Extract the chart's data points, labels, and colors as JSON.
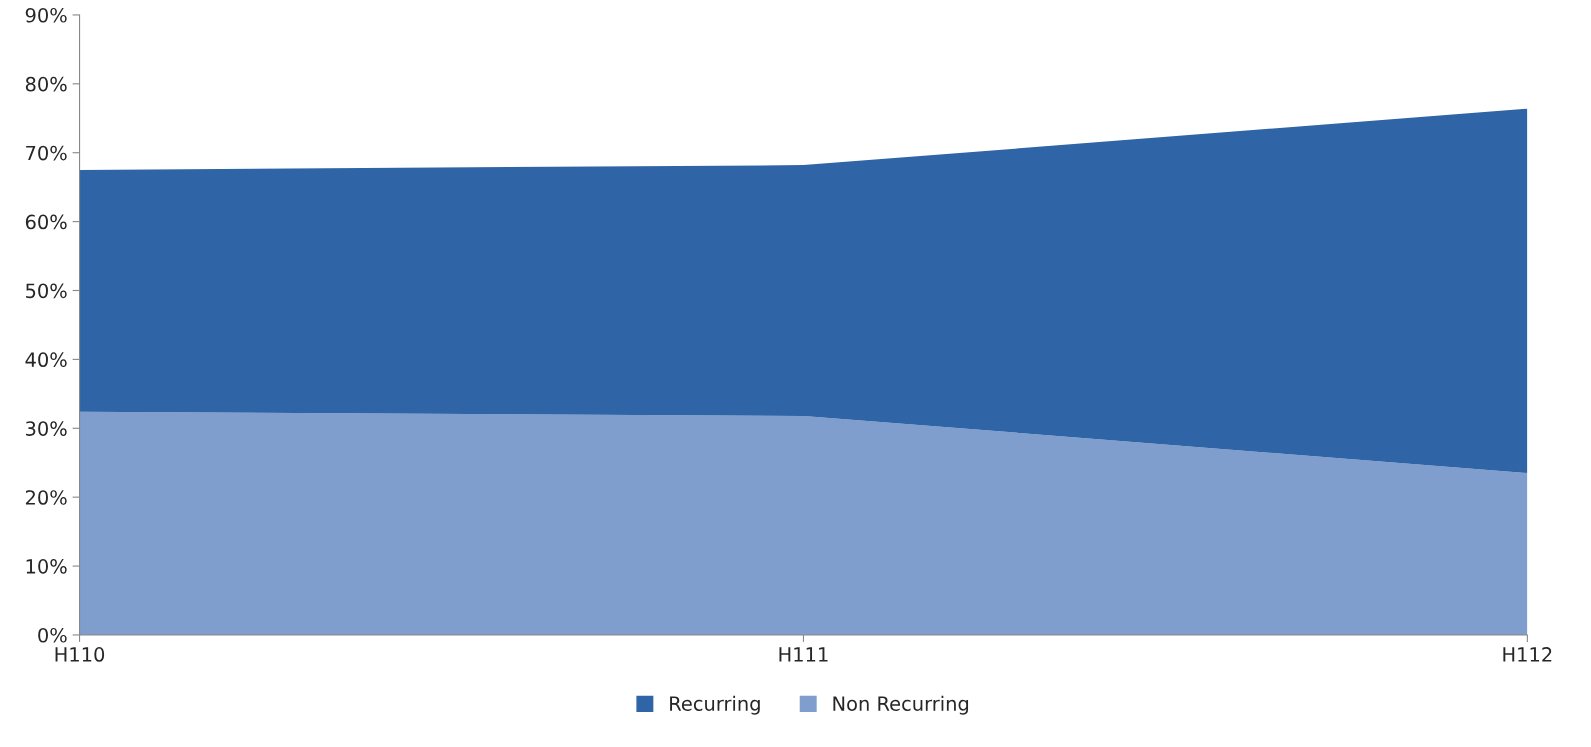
{
  "chart_data": {
    "type": "area",
    "stacked": true,
    "categories": [
      "H110",
      "H111",
      "H112"
    ],
    "series": [
      {
        "name": "Non Recurring",
        "color": "#7f9dcd",
        "values": [
          32.4,
          31.8,
          23.5
        ]
      },
      {
        "name": "Recurring",
        "color": "#2f64a6",
        "values": [
          35.1,
          36.4,
          52.9
        ]
      }
    ],
    "ylim": [
      0,
      90
    ],
    "yticks": [
      {
        "value": 0,
        "label": "0%"
      },
      {
        "value": 10,
        "label": "10%"
      },
      {
        "value": 20,
        "label": "20%"
      },
      {
        "value": 30,
        "label": "30%"
      },
      {
        "value": 40,
        "label": "40%"
      },
      {
        "value": 50,
        "label": "50%"
      },
      {
        "value": 60,
        "label": "60%"
      },
      {
        "value": 70,
        "label": "70%"
      },
      {
        "value": 80,
        "label": "80%"
      },
      {
        "value": 90,
        "label": "90%"
      }
    ],
    "grid": false,
    "legend": "bottom"
  }
}
